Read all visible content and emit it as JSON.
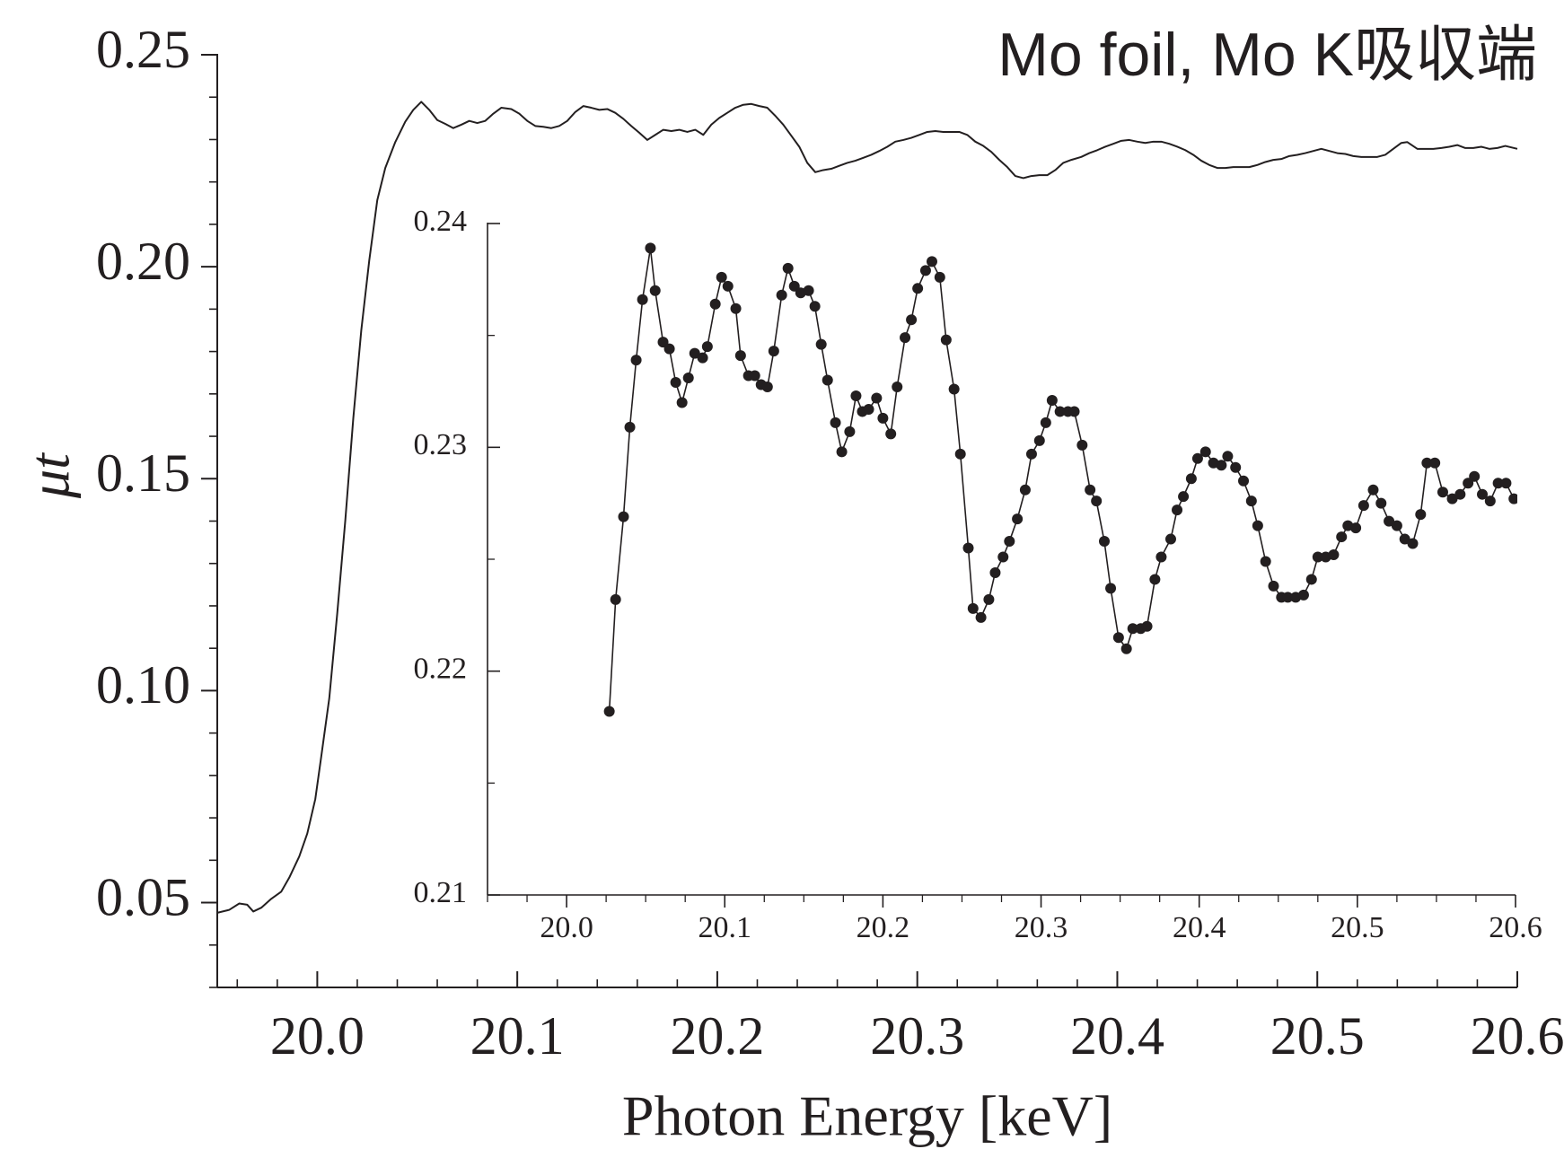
{
  "chart_data": [
    {
      "type": "line",
      "title": "Mo foil, Mo K吸収端",
      "x_label": "Photon Energy [keV]",
      "y_label": "μt",
      "color": "#231f20",
      "xlim": [
        19.95,
        20.6
      ],
      "ylim": [
        0.03,
        0.25
      ],
      "xticks": [
        {
          "value": 20,
          "label": "20.0"
        },
        20.1,
        20.2,
        20.3,
        20.4,
        20.5,
        20.6
      ],
      "xminorticks": [
        19.96,
        19.98,
        20.02,
        20.04,
        20.06,
        20.08,
        20.12,
        20.14,
        20.16,
        20.18,
        20.22,
        20.24,
        20.26,
        20.28,
        20.32,
        20.34,
        20.36,
        20.38,
        20.42,
        20.44,
        20.46,
        20.48,
        20.52,
        20.54,
        20.56,
        20.58
      ],
      "yticks": [
        0.05,
        {
          "value": 0.1,
          "label": "0.10"
        },
        0.15,
        {
          "value": 0.2,
          "label": "0.20"
        },
        0.25
      ],
      "yminorticks": [
        0.03,
        0.04,
        0.06,
        0.07,
        0.08,
        0.09,
        0.11,
        0.12,
        0.13,
        0.14,
        0.16,
        0.17,
        0.18,
        0.19,
        0.21,
        0.22,
        0.23,
        0.24
      ],
      "x": [
        19.95,
        19.956,
        19.961,
        19.965,
        19.968,
        19.972,
        19.977,
        19.982,
        19.986,
        19.991,
        19.995,
        19.999,
        20.002,
        20.006,
        20.01,
        20.014,
        20.018,
        20.022,
        20.026,
        20.03,
        20.034,
        20.039,
        20.044,
        20.048,
        20.052,
        20.056,
        20.06,
        20.064,
        20.068,
        20.072,
        20.076,
        20.08,
        20.084,
        20.088,
        20.092,
        20.097,
        20.101,
        20.105,
        20.109,
        20.113,
        20.117,
        20.121,
        20.125,
        20.129,
        20.133,
        20.137,
        20.141,
        20.145,
        20.149,
        20.153,
        20.157,
        20.161,
        20.165,
        20.169,
        20.173,
        20.177,
        20.181,
        20.185,
        20.189,
        20.193,
        20.197,
        20.201,
        20.205,
        20.209,
        20.213,
        20.217,
        20.221,
        20.225,
        20.229,
        20.233,
        20.237,
        20.241,
        20.245,
        20.249,
        20.253,
        20.257,
        20.261,
        20.265,
        20.269,
        20.273,
        20.277,
        20.281,
        20.285,
        20.289,
        20.293,
        20.297,
        20.301,
        20.305,
        20.309,
        20.313,
        20.317,
        20.321,
        20.325,
        20.329,
        20.333,
        20.337,
        20.341,
        20.345,
        20.349,
        20.353,
        20.357,
        20.361,
        20.365,
        20.369,
        20.373,
        20.377,
        20.382,
        20.386,
        20.39,
        20.394,
        20.398,
        20.402,
        20.406,
        20.41,
        20.414,
        20.418,
        20.422,
        20.426,
        20.43,
        20.434,
        20.438,
        20.442,
        20.446,
        20.45,
        20.454,
        20.458,
        20.462,
        20.466,
        20.47,
        20.474,
        20.478,
        20.482,
        20.486,
        20.49,
        20.494,
        20.498,
        20.502,
        20.506,
        20.51,
        20.514,
        20.518,
        20.522,
        20.526,
        20.53,
        20.534,
        20.538,
        20.542,
        20.545,
        20.55,
        20.554,
        20.558,
        20.562,
        20.566,
        20.57,
        20.574,
        20.578,
        20.582,
        20.586,
        20.59,
        20.594,
        20.6
      ],
      "values": [
        0.0476,
        0.0483,
        0.0498,
        0.0495,
        0.0479,
        0.0488,
        0.0509,
        0.0526,
        0.0559,
        0.0609,
        0.0663,
        0.0744,
        0.0845,
        0.0982,
        0.1183,
        0.1401,
        0.1642,
        0.185,
        0.2015,
        0.2157,
        0.2233,
        0.2294,
        0.2342,
        0.237,
        0.2389,
        0.237,
        0.2346,
        0.2337,
        0.2327,
        0.2335,
        0.2344,
        0.2339,
        0.2344,
        0.2361,
        0.2375,
        0.2372,
        0.2361,
        0.2344,
        0.2332,
        0.233,
        0.2327,
        0.2332,
        0.2344,
        0.2365,
        0.2379,
        0.2375,
        0.237,
        0.2372,
        0.2363,
        0.2349,
        0.2332,
        0.2316,
        0.2299,
        0.2311,
        0.2323,
        0.232,
        0.2323,
        0.2318,
        0.2323,
        0.2311,
        0.2335,
        0.2351,
        0.2363,
        0.2375,
        0.2382,
        0.2384,
        0.2379,
        0.2375,
        0.2356,
        0.2335,
        0.2309,
        0.2283,
        0.2245,
        0.2223,
        0.2228,
        0.2231,
        0.2238,
        0.2245,
        0.225,
        0.2257,
        0.2264,
        0.2273,
        0.2283,
        0.2295,
        0.2299,
        0.2304,
        0.2311,
        0.2318,
        0.232,
        0.2318,
        0.2318,
        0.2318,
        0.2311,
        0.2295,
        0.2285,
        0.2271,
        0.2252,
        0.2235,
        0.2214,
        0.2209,
        0.2214,
        0.2216,
        0.2216,
        0.2228,
        0.2245,
        0.2252,
        0.2259,
        0.2268,
        0.2275,
        0.2283,
        0.229,
        0.2297,
        0.2299,
        0.2295,
        0.2292,
        0.2295,
        0.2295,
        0.229,
        0.2283,
        0.2275,
        0.2264,
        0.225,
        0.224,
        0.2233,
        0.2233,
        0.2235,
        0.2235,
        0.2235,
        0.224,
        0.2247,
        0.2252,
        0.2254,
        0.2261,
        0.2264,
        0.2268,
        0.2273,
        0.2278,
        0.2273,
        0.2268,
        0.2266,
        0.2261,
        0.2259,
        0.2259,
        0.2259,
        0.2264,
        0.2278,
        0.2292,
        0.2294,
        0.2278,
        0.2278,
        0.2278,
        0.228,
        0.2283,
        0.2287,
        0.228,
        0.228,
        0.2283,
        0.2278,
        0.228,
        0.2285,
        0.2278
      ]
    },
    {
      "type": "line",
      "markers": true,
      "color": "#231f20",
      "xlim": [
        19.95,
        20.6
      ],
      "ylim": [
        0.21,
        0.24
      ],
      "xticks": [
        {
          "value": 20,
          "label": "20.0"
        },
        20.1,
        20.2,
        20.3,
        20.4,
        20.5,
        20.6
      ],
      "xminorticks": [
        19.95,
        19.975,
        20.025,
        20.05,
        20.075,
        20.125,
        20.15,
        20.175,
        20.225,
        20.25,
        20.275,
        20.325,
        20.35,
        20.375,
        20.425,
        20.45,
        20.475,
        20.525,
        20.55,
        20.575
      ],
      "yticks": [
        0.21,
        0.22,
        0.23,
        0.24
      ],
      "yminorticks": [
        0.215,
        0.225,
        0.235
      ],
      "x": [
        20.027,
        20.031,
        20.036,
        20.04,
        20.044,
        20.048,
        20.053,
        20.056,
        20.061,
        20.065,
        20.069,
        20.073,
        20.077,
        20.081,
        20.086,
        20.089,
        20.094,
        20.098,
        20.102,
        20.107,
        20.11,
        20.115,
        20.119,
        20.123,
        20.127,
        20.131,
        20.136,
        20.14,
        20.144,
        20.148,
        20.153,
        20.157,
        20.161,
        20.165,
        20.17,
        20.174,
        20.179,
        20.183,
        20.187,
        20.191,
        20.196,
        20.2,
        20.205,
        20.209,
        20.214,
        20.218,
        20.222,
        20.227,
        20.231,
        20.236,
        20.24,
        20.245,
        20.249,
        20.254,
        20.257,
        20.262,
        20.267,
        20.271,
        20.276,
        20.28,
        20.285,
        20.29,
        20.294,
        20.299,
        20.303,
        20.307,
        20.312,
        20.317,
        20.321,
        20.326,
        20.331,
        20.335,
        20.34,
        20.344,
        20.349,
        20.354,
        20.358,
        20.363,
        20.367,
        20.372,
        20.376,
        20.382,
        20.386,
        20.39,
        20.395,
        20.399,
        20.404,
        20.409,
        20.414,
        20.418,
        20.423,
        20.428,
        20.433,
        20.437,
        20.442,
        20.447,
        20.452,
        20.456,
        20.461,
        20.466,
        20.471,
        20.475,
        20.48,
        20.485,
        20.49,
        20.494,
        20.499,
        20.504,
        20.51,
        20.515,
        20.52,
        20.525,
        20.53,
        20.535,
        20.54,
        20.544,
        20.549,
        20.554,
        20.56,
        20.565,
        20.57,
        20.574,
        20.579,
        20.584,
        20.589,
        20.594,
        20.599
      ],
      "values": [
        0.2182,
        0.2232,
        0.2269,
        0.2309,
        0.2339,
        0.2366,
        0.2389,
        0.237,
        0.2347,
        0.2344,
        0.2329,
        0.232,
        0.2331,
        0.2342,
        0.234,
        0.2345,
        0.2364,
        0.2376,
        0.2372,
        0.2362,
        0.2341,
        0.2332,
        0.2332,
        0.2328,
        0.2327,
        0.2343,
        0.2368,
        0.238,
        0.2372,
        0.2369,
        0.237,
        0.2363,
        0.2346,
        0.233,
        0.2311,
        0.2298,
        0.2307,
        0.2323,
        0.2316,
        0.2317,
        0.2322,
        0.2313,
        0.2306,
        0.2327,
        0.2349,
        0.2357,
        0.2371,
        0.2379,
        0.2383,
        0.2376,
        0.2348,
        0.2326,
        0.2297,
        0.2255,
        0.2228,
        0.2224,
        0.2232,
        0.2244,
        0.2251,
        0.2258,
        0.2268,
        0.2281,
        0.2297,
        0.2303,
        0.2311,
        0.2321,
        0.2316,
        0.2316,
        0.2316,
        0.2301,
        0.2281,
        0.2276,
        0.2258,
        0.2237,
        0.2215,
        0.221,
        0.2219,
        0.2219,
        0.222,
        0.2241,
        0.2251,
        0.2259,
        0.2272,
        0.2278,
        0.2286,
        0.2295,
        0.2298,
        0.2293,
        0.2292,
        0.2296,
        0.2291,
        0.2285,
        0.2276,
        0.2265,
        0.2249,
        0.2238,
        0.2233,
        0.2233,
        0.2233,
        0.2234,
        0.2241,
        0.2251,
        0.2251,
        0.2252,
        0.226,
        0.2265,
        0.2264,
        0.2274,
        0.2281,
        0.2275,
        0.2267,
        0.2265,
        0.2259,
        0.2257,
        0.227,
        0.2293,
        0.2293,
        0.228,
        0.2277,
        0.2279,
        0.2284,
        0.2287,
        0.2279,
        0.2276,
        0.2284,
        0.2284,
        0.2277
      ]
    }
  ]
}
